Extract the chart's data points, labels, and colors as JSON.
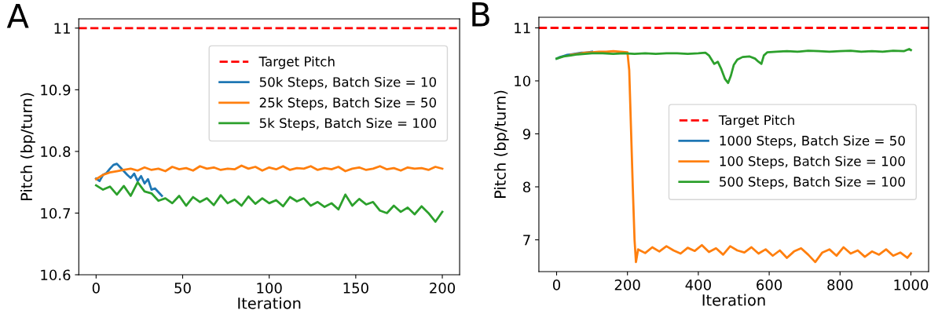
{
  "chart_data": [
    {
      "type": "line",
      "title": "A",
      "xlabel": "Iteration",
      "ylabel": "Pitch (bp/turn)",
      "xlim": [
        -10,
        210
      ],
      "xticks": [
        0,
        50,
        100,
        150,
        200
      ],
      "ylim": [
        10.6,
        11.015
      ],
      "yticks": [
        10.6,
        10.7,
        10.8,
        10.9,
        11
      ],
      "legend": "top right",
      "grid": false,
      "line_style": "solid",
      "ref_lines": [
        {
          "axis": "y",
          "value": 11,
          "label": "Target Pitch",
          "color": "#ff0000",
          "line_style": "dashed"
        }
      ],
      "series": [
        {
          "name": "50k Steps, Batch Size = 10",
          "color": "#1f77b4",
          "x": [
            0,
            2,
            4,
            6,
            8,
            10,
            12,
            14,
            16,
            18,
            20,
            22,
            24,
            26,
            28,
            30,
            32,
            34,
            36,
            38
          ],
          "values": [
            10.756,
            10.752,
            10.762,
            10.765,
            10.772,
            10.778,
            10.78,
            10.774,
            10.768,
            10.762,
            10.757,
            10.764,
            10.752,
            10.76,
            10.748,
            10.755,
            10.738,
            10.74,
            10.734,
            10.728
          ]
        },
        {
          "name": "25k Steps, Batch Size = 50",
          "color": "#ff7f0e",
          "x": [
            0,
            4,
            8,
            12,
            16,
            20,
            24,
            28,
            32,
            36,
            40,
            44,
            48,
            52,
            56,
            60,
            64,
            68,
            72,
            76,
            80,
            84,
            88,
            92,
            96,
            100,
            104,
            108,
            112,
            116,
            120,
            124,
            128,
            132,
            136,
            140,
            144,
            148,
            152,
            156,
            160,
            164,
            168,
            172,
            176,
            180,
            184,
            188,
            192,
            196,
            200
          ],
          "values": [
            10.755,
            10.762,
            10.766,
            10.768,
            10.77,
            10.772,
            10.769,
            10.774,
            10.77,
            10.772,
            10.768,
            10.775,
            10.771,
            10.773,
            10.769,
            10.776,
            10.772,
            10.774,
            10.77,
            10.772,
            10.771,
            10.777,
            10.772,
            10.775,
            10.769,
            10.774,
            10.771,
            10.776,
            10.77,
            10.773,
            10.772,
            10.776,
            10.77,
            10.773,
            10.771,
            10.775,
            10.768,
            10.772,
            10.774,
            10.77,
            10.772,
            10.776,
            10.771,
            10.773,
            10.769,
            10.774,
            10.772,
            10.773,
            10.77,
            10.775,
            10.772
          ]
        },
        {
          "name": "5k Steps, Batch Size = 100",
          "color": "#2ca02c",
          "x": [
            0,
            4,
            8,
            12,
            16,
            20,
            24,
            28,
            32,
            36,
            40,
            44,
            48,
            52,
            56,
            60,
            64,
            68,
            72,
            76,
            80,
            84,
            88,
            92,
            96,
            100,
            104,
            108,
            112,
            116,
            120,
            124,
            128,
            132,
            136,
            140,
            144,
            148,
            152,
            156,
            160,
            164,
            168,
            172,
            176,
            180,
            184,
            188,
            192,
            196,
            200
          ],
          "values": [
            10.745,
            10.738,
            10.743,
            10.73,
            10.744,
            10.728,
            10.75,
            10.735,
            10.732,
            10.72,
            10.724,
            10.716,
            10.728,
            10.712,
            10.726,
            10.718,
            10.724,
            10.713,
            10.729,
            10.716,
            10.722,
            10.712,
            10.727,
            10.715,
            10.724,
            10.716,
            10.721,
            10.711,
            10.726,
            10.719,
            10.724,
            10.712,
            10.718,
            10.71,
            10.716,
            10.706,
            10.73,
            10.712,
            10.723,
            10.714,
            10.718,
            10.704,
            10.7,
            10.712,
            10.702,
            10.709,
            10.698,
            10.711,
            10.7,
            10.686,
            10.702
          ]
        }
      ]
    },
    {
      "type": "line",
      "title": "B",
      "xlabel": "Iteration",
      "ylabel": "Pitch (bp/turn)",
      "xlim": [
        -50,
        1050
      ],
      "xticks": [
        0,
        200,
        400,
        600,
        800,
        1000
      ],
      "ylim": [
        6.4,
        11.2
      ],
      "yticks": [
        7,
        8,
        9,
        10,
        11
      ],
      "legend": "right",
      "grid": false,
      "line_style": "solid",
      "ref_lines": [
        {
          "axis": "y",
          "value": 11,
          "label": "Target Pitch",
          "color": "#ff0000",
          "line_style": "dashed"
        }
      ],
      "series": [
        {
          "name": "1000 Steps, Batch Size = 50",
          "color": "#1f77b4",
          "x": [
            0,
            10,
            20,
            30,
            40,
            50,
            60,
            70,
            80,
            90,
            100
          ],
          "values": [
            10.42,
            10.45,
            10.47,
            10.49,
            10.5,
            10.51,
            10.52,
            10.53,
            10.53,
            10.54,
            10.55
          ]
        },
        {
          "name": "100 Steps, Batch Size = 100",
          "color": "#ff7f0e",
          "x": [
            40,
            60,
            80,
            100,
            120,
            140,
            160,
            180,
            200,
            205,
            210,
            215,
            220,
            224,
            230,
            250,
            270,
            290,
            310,
            330,
            350,
            370,
            390,
            410,
            430,
            450,
            470,
            490,
            510,
            530,
            550,
            570,
            590,
            610,
            630,
            650,
            670,
            690,
            710,
            730,
            750,
            770,
            790,
            810,
            830,
            850,
            870,
            890,
            910,
            930,
            950,
            970,
            990,
            1000
          ],
          "values": [
            10.49,
            10.51,
            10.53,
            10.54,
            10.55,
            10.55,
            10.56,
            10.55,
            10.54,
            10.2,
            9.1,
            8.0,
            7.0,
            6.58,
            6.82,
            6.75,
            6.86,
            6.78,
            6.88,
            6.8,
            6.74,
            6.85,
            6.79,
            6.9,
            6.77,
            6.84,
            6.72,
            6.88,
            6.8,
            6.76,
            6.86,
            6.74,
            6.82,
            6.7,
            6.8,
            6.66,
            6.78,
            6.84,
            6.72,
            6.58,
            6.76,
            6.82,
            6.7,
            6.86,
            6.74,
            6.8,
            6.68,
            6.78,
            6.72,
            6.82,
            6.7,
            6.76,
            6.66,
            6.74
          ]
        },
        {
          "name": "500 Steps, Batch Size = 100",
          "color": "#2ca02c",
          "x": [
            0,
            20,
            40,
            60,
            80,
            100,
            130,
            160,
            190,
            220,
            250,
            280,
            310,
            340,
            370,
            400,
            420,
            430,
            445,
            455,
            465,
            475,
            484,
            492,
            500,
            510,
            525,
            545,
            560,
            570,
            578,
            585,
            595,
            620,
            650,
            680,
            710,
            740,
            770,
            800,
            830,
            860,
            890,
            920,
            950,
            980,
            995,
            1000
          ],
          "values": [
            10.42,
            10.46,
            10.48,
            10.5,
            10.51,
            10.52,
            10.52,
            10.51,
            10.52,
            10.51,
            10.52,
            10.51,
            10.52,
            10.52,
            10.51,
            10.52,
            10.53,
            10.48,
            10.32,
            10.36,
            10.22,
            10.04,
            9.96,
            10.1,
            10.3,
            10.4,
            10.45,
            10.46,
            10.42,
            10.36,
            10.32,
            10.48,
            10.54,
            10.55,
            10.56,
            10.55,
            10.57,
            10.56,
            10.55,
            10.56,
            10.57,
            10.55,
            10.56,
            10.55,
            10.57,
            10.56,
            10.6,
            10.58
          ]
        }
      ]
    }
  ]
}
